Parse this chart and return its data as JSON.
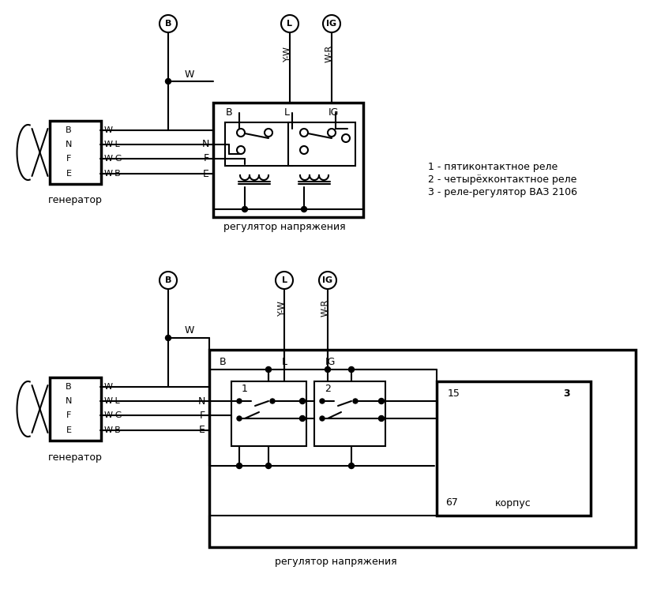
{
  "bg_color": "#ffffff",
  "fig_width": 8.51,
  "fig_height": 7.46,
  "title_reg": "регулятор напряжения",
  "gen_label": "генератор",
  "legend1": "1 - пятиконтактное реле",
  "legend2": "2 - четырёхконтактное реле",
  "legend3": "3 - реле-регулятор ВАЗ 2106",
  "label_korpus": "корпус"
}
